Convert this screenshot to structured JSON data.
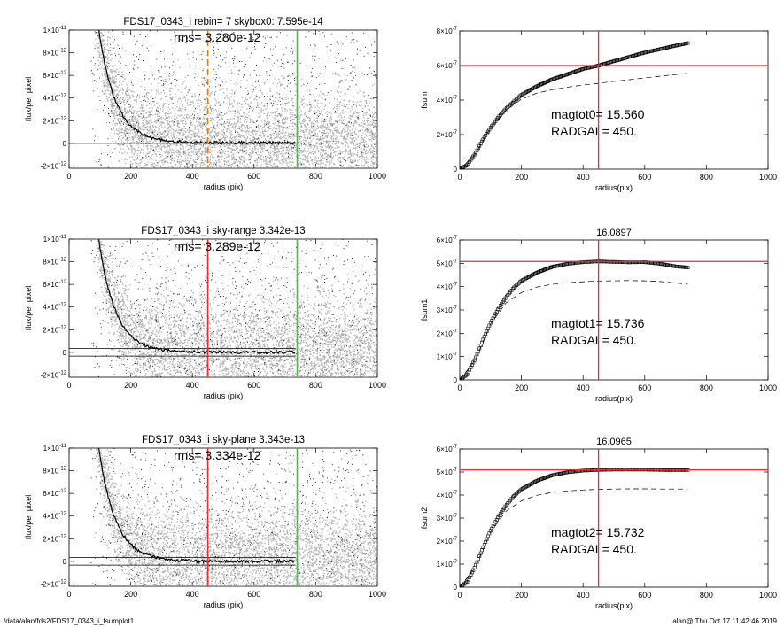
{
  "footer": {
    "path": "/data/alan/fds2/FDS17_0343_i_fsumplot1",
    "user_time": "alan@  Thu Oct 17 11:42:46 2019"
  },
  "colors": {
    "scatter": "#b0b0b0",
    "sparse_points": "#000000",
    "profile": "#000000",
    "radgal_line": "#e03030",
    "sky_inner_line": "#e07b1a",
    "sky_outer_line": "#33cc33",
    "guide_line": "#e03030",
    "curve_symbol": "#000000"
  },
  "chart_data": [
    {
      "id": "profile-0",
      "type": "scatter",
      "title": "FDS17_0343_i rebin= 7    skybox0:  7.595e-14",
      "annotations": [
        "rms= 3.280e-12"
      ],
      "xlabel": "radius (pix)",
      "ylabel": "flux/per pixel",
      "xlim": [
        0,
        1000
      ],
      "ylim": [
        -2.2e-12,
        1e-11
      ],
      "xticks": [
        0,
        200,
        400,
        600,
        800,
        1000
      ],
      "xtick_labels": [
        "0",
        "200",
        "400",
        "600",
        "800",
        "1000"
      ],
      "yticks": [
        -2e-12,
        0,
        2e-12,
        4e-12,
        6e-12,
        8e-12,
        1e-11
      ],
      "ytick_labels": [
        {
          "m": "-2×10",
          "e": "-12"
        },
        {
          "m": "0",
          "e": ""
        },
        {
          "m": "2×10",
          "e": "-12"
        },
        {
          "m": "4×10",
          "e": "-12"
        },
        {
          "m": "6×10",
          "e": "-12"
        },
        {
          "m": "8×10",
          "e": "-12"
        },
        {
          "m": "1×10",
          "e": "-11"
        }
      ],
      "profile": {
        "amplitude": 1.6e-11,
        "scale": 55,
        "offset": 5e-14,
        "start": 70,
        "end": 735
      },
      "scatter_extent": {
        "start": 70,
        "end": 1000,
        "sigma": 2.5e-12
      },
      "sky_band": [
        0
      ],
      "vlines": [
        {
          "x": 450,
          "style": "dashed",
          "color_key": "sky_inner_line"
        },
        {
          "x": 740,
          "style": "solid",
          "color_key": "sky_outer_line"
        }
      ]
    },
    {
      "id": "profile-1",
      "type": "scatter",
      "title": "FDS17_0343_i sky-range  3.342e-13",
      "annotations": [
        "rms= 3.289e-12"
      ],
      "xlabel": "radius (pix)",
      "ylabel": "flux/per pixel",
      "xlim": [
        0,
        1000
      ],
      "ylim": [
        -2.2e-12,
        1e-11
      ],
      "xticks": [
        0,
        200,
        400,
        600,
        800,
        1000
      ],
      "xtick_labels": [
        "0",
        "200",
        "400",
        "600",
        "800",
        "1000"
      ],
      "yticks": [
        -2e-12,
        0,
        2e-12,
        4e-12,
        6e-12,
        8e-12,
        1e-11
      ],
      "ytick_labels": [
        {
          "m": "-2×10",
          "e": "-12"
        },
        {
          "m": "0",
          "e": ""
        },
        {
          "m": "2×10",
          "e": "-12"
        },
        {
          "m": "4×10",
          "e": "-12"
        },
        {
          "m": "6×10",
          "e": "-12"
        },
        {
          "m": "8×10",
          "e": "-12"
        },
        {
          "m": "1×10",
          "e": "-11"
        }
      ],
      "profile": {
        "amplitude": 1.6e-11,
        "scale": 55,
        "offset": 0,
        "start": 70,
        "end": 735
      },
      "scatter_extent": {
        "start": 70,
        "end": 1000,
        "sigma": 2.5e-12
      },
      "sky_band": [
        3.3e-13,
        -3.3e-13
      ],
      "vlines": [
        {
          "x": 450,
          "style": "solid",
          "color_key": "radgal_line"
        },
        {
          "x": 740,
          "style": "solid",
          "color_key": "sky_outer_line"
        }
      ]
    },
    {
      "id": "profile-2",
      "type": "scatter",
      "title": "FDS17_0343_i sky-plane  3.343e-13",
      "annotations": [
        "rms= 3.334e-12"
      ],
      "xlabel": "radius (pix)",
      "ylabel": "flux/per pixel",
      "xlim": [
        0,
        1000
      ],
      "ylim": [
        -2.2e-12,
        1e-11
      ],
      "xticks": [
        0,
        200,
        400,
        600,
        800,
        1000
      ],
      "xtick_labels": [
        "0",
        "200",
        "400",
        "600",
        "800",
        "1000"
      ],
      "yticks": [
        -2e-12,
        0,
        2e-12,
        4e-12,
        6e-12,
        8e-12,
        1e-11
      ],
      "ytick_labels": [
        {
          "m": "-2×10",
          "e": "-12"
        },
        {
          "m": "0",
          "e": ""
        },
        {
          "m": "2×10",
          "e": "-12"
        },
        {
          "m": "4×10",
          "e": "-12"
        },
        {
          "m": "6×10",
          "e": "-12"
        },
        {
          "m": "8×10",
          "e": "-12"
        },
        {
          "m": "1×10",
          "e": "-11"
        }
      ],
      "profile": {
        "amplitude": 1.6e-11,
        "scale": 55,
        "offset": 0,
        "start": 70,
        "end": 735
      },
      "scatter_extent": {
        "start": 70,
        "end": 1000,
        "sigma": 2.5e-12
      },
      "sky_band": [
        3.3e-13,
        -3.3e-13
      ],
      "vlines": [
        {
          "x": 450,
          "style": "solid",
          "color_key": "radgal_line"
        },
        {
          "x": 740,
          "style": "solid",
          "color_key": "sky_outer_line"
        }
      ]
    },
    {
      "id": "growth-0",
      "type": "line",
      "title": "",
      "annotations": [
        "magtot0=  15.560",
        "RADGAL=    450."
      ],
      "xlabel": "radius(pix)",
      "ylabel": "fsum",
      "xlim": [
        0,
        1000
      ],
      "ylim": [
        0,
        8e-07
      ],
      "xticks": [
        0,
        200,
        400,
        600,
        800,
        1000
      ],
      "xtick_labels": [
        "0",
        "200",
        "400",
        "600",
        "800",
        "1000"
      ],
      "yticks": [
        0,
        2e-07,
        4e-07,
        6e-07,
        8e-07
      ],
      "ytick_labels": [
        {
          "m": "0",
          "e": ""
        },
        {
          "m": "2×10",
          "e": "-7"
        },
        {
          "m": "4×10",
          "e": "-7"
        },
        {
          "m": "6×10",
          "e": "-7"
        },
        {
          "m": "8×10",
          "e": "-7"
        }
      ],
      "curve": {
        "x": [
          0,
          25,
          50,
          75,
          100,
          125,
          150,
          175,
          200,
          250,
          300,
          350,
          400,
          450,
          500,
          550,
          600,
          650,
          700,
          740
        ],
        "y": [
          0,
          2.5e-08,
          9e-08,
          1.7e-07,
          2.4e-07,
          3e-07,
          3.5e-07,
          3.9e-07,
          4.3e-07,
          4.8e-07,
          5.2e-07,
          5.5e-07,
          5.8e-07,
          6e-07,
          6.25e-07,
          6.5e-07,
          6.75e-07,
          6.95e-07,
          7.15e-07,
          7.3e-07
        ]
      },
      "dashed_curve": {
        "x": [
          0,
          50,
          100,
          150,
          200,
          250,
          300,
          350,
          400,
          450,
          500,
          550,
          600,
          650,
          700,
          740
        ],
        "y": [
          0,
          8.5e-08,
          2.4e-07,
          3.4e-07,
          4.05e-07,
          4.4e-07,
          4.6e-07,
          4.75e-07,
          4.87e-07,
          4.97e-07,
          5.08e-07,
          5.18e-07,
          5.28e-07,
          5.38e-07,
          5.48e-07,
          5.55e-07
        ]
      },
      "hline": 6e-07,
      "vline": 450
    },
    {
      "id": "growth-1",
      "type": "line",
      "title": "16.0897",
      "annotations": [
        "magtot1=  15.736",
        "RADGAL=    450."
      ],
      "xlabel": "radius(pix)",
      "ylabel": "fsum1",
      "xlim": [
        0,
        1000
      ],
      "ylim": [
        0,
        6e-07
      ],
      "xticks": [
        0,
        200,
        400,
        600,
        800,
        1000
      ],
      "xtick_labels": [
        "0",
        "200",
        "400",
        "600",
        "800",
        "1000"
      ],
      "yticks": [
        0,
        1e-07,
        2e-07,
        3e-07,
        4e-07,
        5e-07,
        6e-07
      ],
      "ytick_labels": [
        {
          "m": "0",
          "e": ""
        },
        {
          "m": "1×10",
          "e": "-7"
        },
        {
          "m": "2×10",
          "e": "-7"
        },
        {
          "m": "3×10",
          "e": "-7"
        },
        {
          "m": "4×10",
          "e": "-7"
        },
        {
          "m": "5×10",
          "e": "-7"
        },
        {
          "m": "6×10",
          "e": "-7"
        }
      ],
      "curve": {
        "x": [
          0,
          25,
          50,
          75,
          100,
          125,
          150,
          175,
          200,
          250,
          300,
          350,
          400,
          450,
          500,
          550,
          600,
          650,
          700,
          740
        ],
        "y": [
          0,
          2.5e-08,
          9e-08,
          1.7e-07,
          2.45e-07,
          3.05e-07,
          3.55e-07,
          3.95e-07,
          4.25e-07,
          4.6e-07,
          4.85e-07,
          4.98e-07,
          5.05e-07,
          5.08e-07,
          5.06e-07,
          5.04e-07,
          5.05e-07,
          4.98e-07,
          4.87e-07,
          4.82e-07
        ]
      },
      "dashed_curve": {
        "x": [
          0,
          50,
          100,
          150,
          200,
          250,
          300,
          350,
          400,
          450,
          500,
          550,
          600,
          650,
          700,
          740
        ],
        "y": [
          0,
          8.5e-08,
          2.4e-07,
          3.3e-07,
          3.75e-07,
          3.98e-07,
          4.1e-07,
          4.17e-07,
          4.21e-07,
          4.24e-07,
          4.25e-07,
          4.26e-07,
          4.25e-07,
          4.22e-07,
          4.16e-07,
          4.1e-07
        ]
      },
      "hline": 5.08e-07,
      "vline": 450
    },
    {
      "id": "growth-2",
      "type": "line",
      "title": "16.0965",
      "annotations": [
        "magtot2=  15.732",
        "RADGAL=    450."
      ],
      "xlabel": "radius(pix)",
      "ylabel": "fsum2",
      "xlim": [
        0,
        1000
      ],
      "ylim": [
        0,
        6e-07
      ],
      "xticks": [
        0,
        200,
        400,
        600,
        800,
        1000
      ],
      "xtick_labels": [
        "0",
        "200",
        "400",
        "600",
        "800",
        "1000"
      ],
      "yticks": [
        0,
        1e-07,
        2e-07,
        3e-07,
        4e-07,
        5e-07,
        6e-07
      ],
      "ytick_labels": [
        {
          "m": "0",
          "e": ""
        },
        {
          "m": "1×10",
          "e": "-7"
        },
        {
          "m": "2×10",
          "e": "-7"
        },
        {
          "m": "3×10",
          "e": "-7"
        },
        {
          "m": "4×10",
          "e": "-7"
        },
        {
          "m": "5×10",
          "e": "-7"
        },
        {
          "m": "6×10",
          "e": "-7"
        }
      ],
      "curve": {
        "x": [
          0,
          25,
          50,
          75,
          100,
          125,
          150,
          175,
          200,
          250,
          300,
          350,
          400,
          450,
          500,
          550,
          600,
          650,
          700,
          740
        ],
        "y": [
          0,
          2.5e-08,
          9e-08,
          1.7e-07,
          2.45e-07,
          3.05e-07,
          3.55e-07,
          3.95e-07,
          4.25e-07,
          4.62e-07,
          4.86e-07,
          4.99e-07,
          5.06e-07,
          5.09e-07,
          5.1e-07,
          5.1e-07,
          5.1e-07,
          5.09e-07,
          5.08e-07,
          5.08e-07
        ]
      },
      "dashed_curve": {
        "x": [
          0,
          50,
          100,
          150,
          200,
          250,
          300,
          350,
          400,
          450,
          500,
          550,
          600,
          650,
          700,
          740
        ],
        "y": [
          0,
          8.5e-08,
          2.4e-07,
          3.3e-07,
          3.75e-07,
          3.99e-07,
          4.11e-07,
          4.18e-07,
          4.22e-07,
          4.25e-07,
          4.26e-07,
          4.27e-07,
          4.27e-07,
          4.26e-07,
          4.26e-07,
          4.26e-07
        ]
      },
      "hline": 5.09e-07,
      "vline": 450
    }
  ]
}
